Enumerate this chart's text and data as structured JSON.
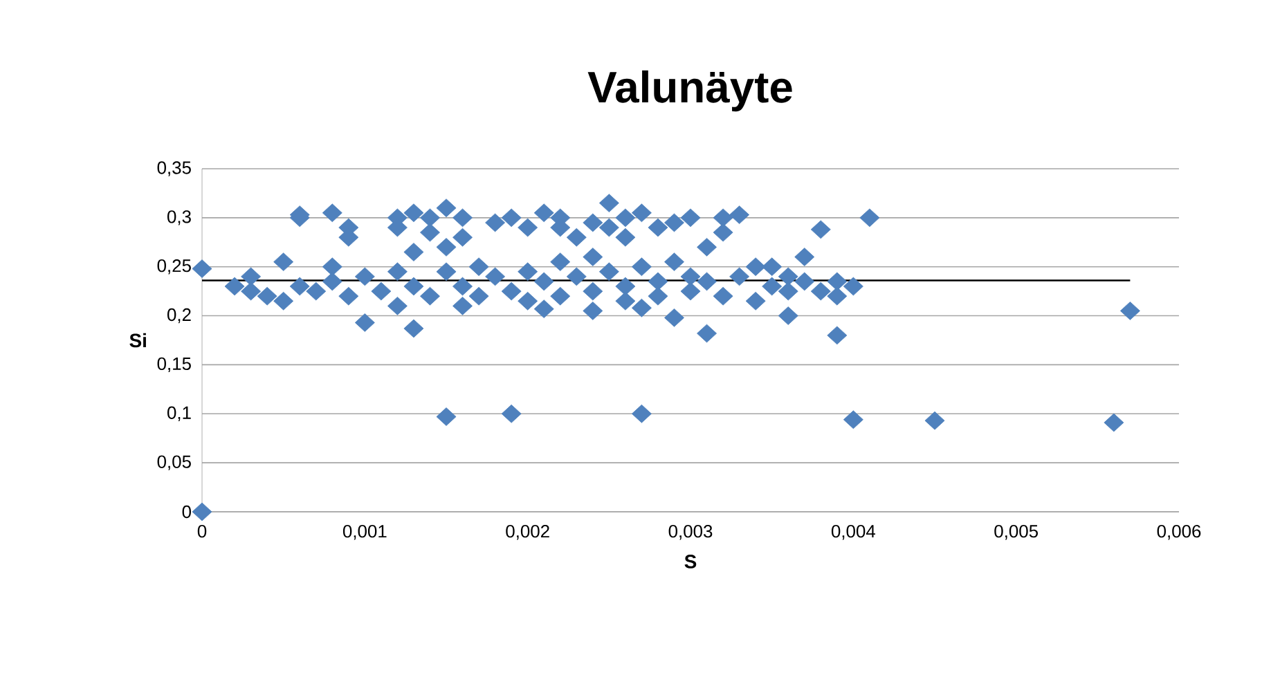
{
  "chart_data": {
    "type": "scatter",
    "title": "Valunäyte",
    "xlabel": "S",
    "ylabel": "Si",
    "xlim": [
      0,
      0.006
    ],
    "ylim": [
      0,
      0.35
    ],
    "xticks": [
      0,
      {
        "value": 0.001,
        "label": "0,001"
      },
      {
        "value": 0.002,
        "label": "0,002"
      },
      {
        "value": 0.003,
        "label": "0,003"
      },
      {
        "value": 0.004,
        "label": "0,004"
      },
      {
        "value": 0.005,
        "label": "0,005"
      },
      {
        "value": 0.006,
        "label": "0,006"
      }
    ],
    "yticks": [
      0,
      {
        "value": 0.05,
        "label": "0,05"
      },
      {
        "value": 0.1,
        "label": "0,1"
      },
      {
        "value": 0.15,
        "label": "0,15"
      },
      {
        "value": 0.2,
        "label": "0,2"
      },
      {
        "value": 0.25,
        "label": "0,25"
      },
      {
        "value": 0.3,
        "label": "0,3"
      },
      {
        "value": 0.35,
        "label": "0,35"
      }
    ],
    "grid": "y",
    "marker": "diamond",
    "series": [
      {
        "color": "#4f81bd",
        "x": [
          0,
          0,
          0.0015,
          0.0019,
          0.0027,
          0.004,
          0.0045,
          0.0056,
          0.0057,
          0.0006,
          0.0006,
          0.0008,
          0.0009,
          0.0009,
          0.0012,
          0.0012,
          0.0013,
          0.0014,
          0.0014,
          0.0015,
          0.0015,
          0.0016,
          0.0016,
          0.0018,
          0.0019,
          0.002,
          0.0021,
          0.0022,
          0.0022,
          0.0023,
          0.0024,
          0.0025,
          0.0025,
          0.0026,
          0.0026,
          0.0027,
          0.0028,
          0.0029,
          0.003,
          0.0031,
          0.0032,
          0.0032,
          0.0033,
          0.0038,
          0.0041,
          0.0037,
          0.0035,
          0.001,
          0.0013,
          0.0029,
          0.0031,
          0.0036,
          0.0039,
          0.0012,
          0.0016,
          0.0021,
          0.0024,
          0.0027,
          0.0002,
          0.0003,
          0.0003,
          0.0004,
          0.0005,
          0.0005,
          0.0006,
          0.0007,
          0.0008,
          0.0008,
          0.0009,
          0.001,
          0.0011,
          0.0012,
          0.0013,
          0.0013,
          0.0014,
          0.0015,
          0.0016,
          0.0017,
          0.0017,
          0.0018,
          0.0019,
          0.002,
          0.002,
          0.0021,
          0.0022,
          0.0022,
          0.0023,
          0.0024,
          0.0024,
          0.0025,
          0.0026,
          0.0026,
          0.0027,
          0.0028,
          0.0028,
          0.0029,
          0.003,
          0.003,
          0.0031,
          0.0032,
          0.0033,
          0.0034,
          0.0034,
          0.0035,
          0.0036,
          0.0036,
          0.0037,
          0.0038,
          0.0039,
          0.004,
          0.0039
        ],
        "values": [
          0.248,
          0,
          0.097,
          0.1,
          0.1,
          0.094,
          0.093,
          0.091,
          0.205,
          0.3,
          0.303,
          0.305,
          0.29,
          0.28,
          0.3,
          0.29,
          0.305,
          0.3,
          0.285,
          0.31,
          0.27,
          0.3,
          0.28,
          0.295,
          0.3,
          0.29,
          0.305,
          0.3,
          0.29,
          0.28,
          0.295,
          0.315,
          0.29,
          0.28,
          0.3,
          0.305,
          0.29,
          0.295,
          0.3,
          0.27,
          0.3,
          0.285,
          0.303,
          0.288,
          0.3,
          0.26,
          0.25,
          0.193,
          0.187,
          0.198,
          0.182,
          0.2,
          0.18,
          0.21,
          0.21,
          0.207,
          0.205,
          0.208,
          0.23,
          0.24,
          0.225,
          0.22,
          0.255,
          0.215,
          0.23,
          0.225,
          0.25,
          0.235,
          0.22,
          0.24,
          0.225,
          0.245,
          0.23,
          0.265,
          0.22,
          0.245,
          0.23,
          0.25,
          0.22,
          0.24,
          0.225,
          0.245,
          0.215,
          0.235,
          0.255,
          0.22,
          0.24,
          0.26,
          0.225,
          0.245,
          0.23,
          0.215,
          0.25,
          0.235,
          0.22,
          0.255,
          0.24,
          0.225,
          0.235,
          0.22,
          0.24,
          0.25,
          0.215,
          0.23,
          0.24,
          0.225,
          0.235,
          0.225,
          0.22,
          0.23,
          0.235
        ]
      },
      {
        "type": "line",
        "color": "#000000",
        "marker": "none",
        "x": [
          0,
          0.0057
        ],
        "values": [
          0.236,
          0.236
        ]
      }
    ]
  }
}
